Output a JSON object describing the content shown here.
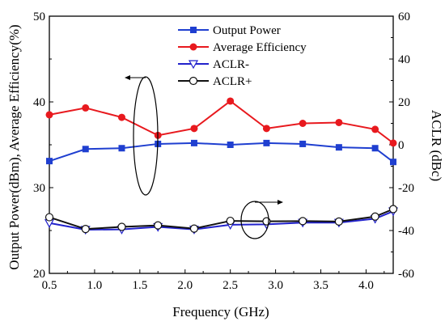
{
  "chart_data": {
    "type": "line",
    "xlabel": "Frequency (GHz)",
    "ylabel_left": "Output Power(dBm), Average Efficiency(%)",
    "ylabel_right": "ACLR (dBc)",
    "xlim": [
      0.5,
      4.3
    ],
    "ylim_left": [
      20,
      50
    ],
    "ylim_right": [
      -60,
      60
    ],
    "x_ticks": [
      "0.5",
      "1.0",
      "1.5",
      "2.0",
      "2.5",
      "3.0",
      "3.5",
      "4.0"
    ],
    "x_tick_values": [
      0.5,
      1.0,
      1.5,
      2.0,
      2.5,
      3.0,
      3.5,
      4.0
    ],
    "y_left_ticks": [
      "20",
      "30",
      "40",
      "50"
    ],
    "y_left_tick_values": [
      20,
      30,
      40,
      50
    ],
    "y_right_ticks": [
      "-60",
      "-40",
      "-20",
      "0",
      "20",
      "40",
      "60"
    ],
    "y_right_tick_values": [
      -60,
      -40,
      -20,
      0,
      20,
      40,
      60
    ],
    "x": [
      0.5,
      0.9,
      1.3,
      1.7,
      2.1,
      2.5,
      2.9,
      3.3,
      3.7,
      4.1,
      4.3
    ],
    "series": [
      {
        "name": "Output Power",
        "axis": "left",
        "color": "#1f3fd0",
        "marker": "square",
        "values": [
          33.1,
          34.5,
          34.6,
          35.1,
          35.2,
          35.0,
          35.2,
          35.1,
          34.7,
          34.6,
          33.0
        ]
      },
      {
        "name": "Average Efficiency",
        "axis": "left",
        "color": "#e8191e",
        "marker": "circle",
        "values": [
          38.5,
          39.3,
          38.2,
          36.1,
          36.9,
          40.1,
          36.9,
          37.5,
          37.6,
          36.8,
          35.2
        ]
      },
      {
        "name": "ACLR-",
        "axis": "right",
        "color": "#2222cc",
        "marker": "triangle-down-open",
        "values": [
          -36.5,
          -39.6,
          -39.5,
          -38.3,
          -39.5,
          -37.3,
          -37.1,
          -36.3,
          -36.3,
          -34.5,
          -31.0
        ]
      },
      {
        "name": "ACLR+",
        "axis": "right",
        "color": "#111111",
        "marker": "circle-open",
        "values": [
          -33.8,
          -39.3,
          -38.3,
          -37.6,
          -39.1,
          -35.5,
          -35.7,
          -35.6,
          -35.8,
          -33.5,
          -30.0
        ]
      }
    ],
    "legend": {
      "placement": "top-center"
    },
    "annotations": [
      "ellipse with arrow pointing left (Output Power and Average Efficiency use left axis)",
      "ellipse with arrow pointing right (ACLR uses right axis)"
    ],
    "grid": false
  }
}
